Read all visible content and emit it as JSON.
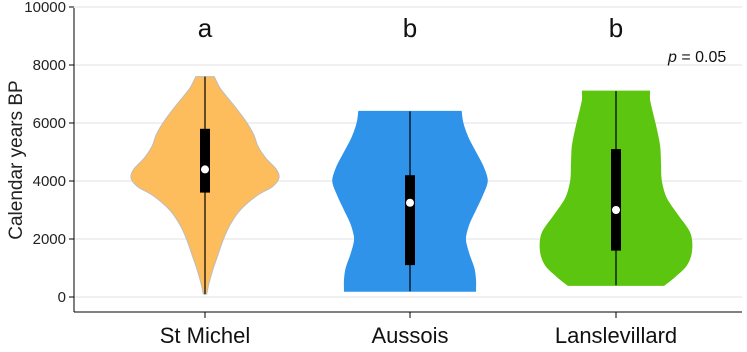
{
  "chart_data": {
    "type": "violin",
    "ylabel": "Calendar years BP",
    "ylim": [
      0,
      10000
    ],
    "yticks": [
      0,
      2000,
      4000,
      6000,
      8000,
      10000
    ],
    "grid": true,
    "annotation_p_prefix": "p",
    "annotation_p_suffix": " = 0.05",
    "categories": [
      "St Michel",
      "Aussois",
      "Lanslevillard"
    ],
    "series": [
      {
        "category": "St Michel",
        "color": "#FDBD5C",
        "stroke": "#BDBDBD",
        "letter": "a",
        "min": 100,
        "q1": 3600,
        "median": 4400,
        "q3": 5800,
        "max": 7600,
        "profile": [
          [
            100,
            0.02
          ],
          [
            500,
            0.05
          ],
          [
            1000,
            0.1
          ],
          [
            1500,
            0.16
          ],
          [
            2000,
            0.22
          ],
          [
            2500,
            0.3
          ],
          [
            3000,
            0.42
          ],
          [
            3500,
            0.62
          ],
          [
            3800,
            0.8
          ],
          [
            4100,
            0.88
          ],
          [
            4400,
            0.85
          ],
          [
            4800,
            0.72
          ],
          [
            5200,
            0.63
          ],
          [
            5600,
            0.58
          ],
          [
            6000,
            0.5
          ],
          [
            6400,
            0.4
          ],
          [
            6800,
            0.29
          ],
          [
            7200,
            0.18
          ],
          [
            7600,
            0.11
          ]
        ]
      },
      {
        "category": "Aussois",
        "color": "#2F93EA",
        "stroke": "#2F93EA",
        "letter": "b",
        "min": 200,
        "q1": 1100,
        "median": 3250,
        "q3": 4200,
        "max": 6400,
        "profile": [
          [
            200,
            0.78
          ],
          [
            600,
            0.78
          ],
          [
            1000,
            0.76
          ],
          [
            1500,
            0.7
          ],
          [
            2000,
            0.66
          ],
          [
            2500,
            0.7
          ],
          [
            3000,
            0.78
          ],
          [
            3500,
            0.86
          ],
          [
            4000,
            0.92
          ],
          [
            4500,
            0.87
          ],
          [
            5000,
            0.78
          ],
          [
            5500,
            0.69
          ],
          [
            6000,
            0.63
          ],
          [
            6400,
            0.61
          ]
        ]
      },
      {
        "category": "Lanslevillard",
        "color": "#5CC50F",
        "stroke": "#5CC50F",
        "letter": "b",
        "min": 400,
        "q1": 1600,
        "median": 3000,
        "q3": 5100,
        "max": 7100,
        "profile": [
          [
            400,
            0.57
          ],
          [
            700,
            0.7
          ],
          [
            1100,
            0.84
          ],
          [
            1600,
            0.9
          ],
          [
            2200,
            0.88
          ],
          [
            2800,
            0.74
          ],
          [
            3400,
            0.6
          ],
          [
            4000,
            0.54
          ],
          [
            4600,
            0.53
          ],
          [
            5200,
            0.52
          ],
          [
            5800,
            0.48
          ],
          [
            6400,
            0.43
          ],
          [
            6800,
            0.4
          ],
          [
            7100,
            0.4
          ]
        ]
      }
    ]
  }
}
